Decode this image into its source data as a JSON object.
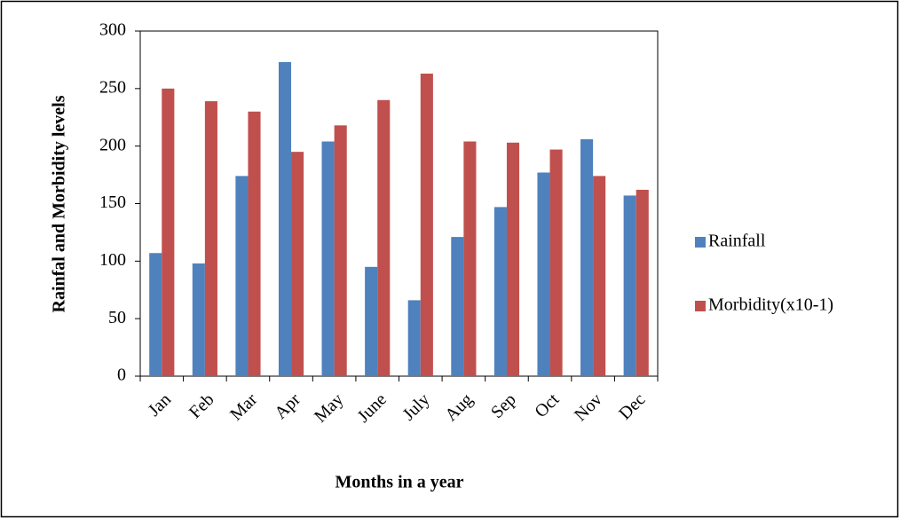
{
  "chart_data": {
    "type": "bar",
    "x_label": "Months in a year",
    "y_label": "Rainfal and Morbidity levels",
    "categories": [
      "Jan",
      "Feb",
      "Mar",
      "Apr",
      "May",
      "June",
      "July",
      "Aug",
      "Sep",
      "Oct",
      "Nov",
      "Dec"
    ],
    "series": [
      {
        "name": "Rainfall",
        "color": "#4f81bd",
        "values": [
          107,
          98,
          174,
          273,
          204,
          95,
          66,
          121,
          147,
          177,
          206,
          157
        ]
      },
      {
        "name": "Morbidity(x10-1)",
        "color": "#c0504d",
        "values": [
          250,
          239,
          230,
          195,
          218,
          240,
          263,
          204,
          203,
          197,
          174,
          162
        ]
      }
    ],
    "ylim": [
      0,
      300
    ],
    "yticks": [
      0,
      50,
      100,
      150,
      200,
      250,
      300
    ],
    "grid": false,
    "legend": "right"
  }
}
